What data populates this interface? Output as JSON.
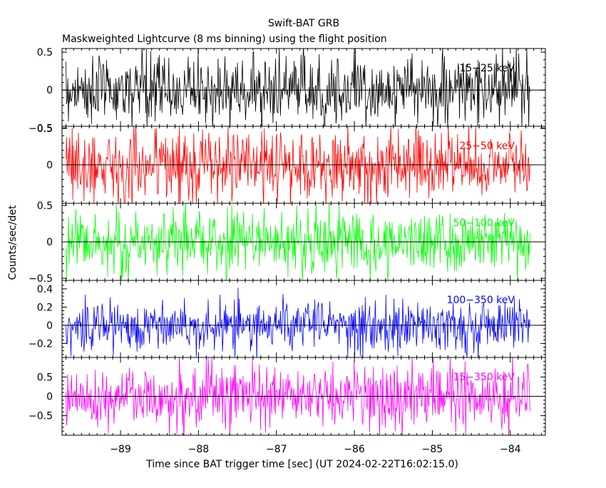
{
  "title": "Swift-BAT GRB",
  "subtitle": "Maskweighted Lightcurve (8 ms binning) using the flight position",
  "chart_data": {
    "type": "line",
    "title": "Swift-BAT GRB",
    "subtitle": "Maskweighted Lightcurve (8 ms binning) using the flight position",
    "xlabel": "Time since BAT trigger time [sec] (UT 2024-02-22T16:02:15.0)",
    "ylabel": "Counts/sec/det",
    "xlim": [
      -89.75,
      -83.55
    ],
    "xticks": [
      -89,
      -88,
      -87,
      -86,
      -85,
      -84
    ],
    "xtick_labels": [
      "−89",
      "−88",
      "−87",
      "−86",
      "−85",
      "−84"
    ],
    "data_range": [
      -89.7,
      -83.75
    ],
    "bin_size_sec": 0.008,
    "grid": false,
    "panels": [
      {
        "name": "15-25 keV",
        "label": "15−25 keV",
        "color": "#000000",
        "ylim": [
          -0.45,
          0.52
        ],
        "yticks": [
          0.5,
          0,
          -0.5
        ],
        "ytick_labels": [
          "0.5",
          "0",
          "−0.5"
        ],
        "amplitude": 0.23
      },
      {
        "name": "25-50 keV",
        "label": "25−50 keV",
        "color": "#ff0000",
        "ylim": [
          -0.5,
          0.5
        ],
        "yticks": [
          0.5,
          0
        ],
        "ytick_labels": [
          "0.5",
          "0"
        ],
        "amplitude": 0.25
      },
      {
        "name": "50-100 keV",
        "label": "50−100 keV",
        "color": "#00ff00",
        "ylim": [
          -0.5,
          0.5
        ],
        "yticks": [
          0.5,
          0,
          -0.5
        ],
        "ytick_labels": [
          "0.5",
          "0",
          "−0.5"
        ],
        "amplitude": 0.21
      },
      {
        "name": "100-350 keV",
        "label": "100−350 keV",
        "color": "#0000ff",
        "ylim": [
          -0.33,
          0.47
        ],
        "yticks": [
          0.4,
          0.2,
          0,
          -0.2
        ],
        "ytick_labels": [
          "0.4",
          "0.2",
          "0",
          "−0.2"
        ],
        "amplitude": 0.14
      },
      {
        "name": "15-350 keV",
        "label": "15−350 keV",
        "color": "#ff00ff",
        "ylim": [
          -0.95,
          0.95
        ],
        "yticks": [
          0.5,
          0,
          -0.5
        ],
        "ytick_labels": [
          "0.5",
          "0",
          "−0.5"
        ],
        "amplitude": 0.42
      }
    ]
  }
}
